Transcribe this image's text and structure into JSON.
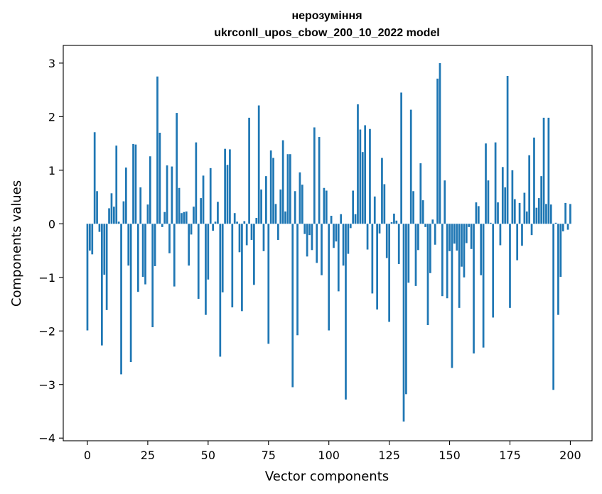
{
  "chart_data": {
    "type": "bar",
    "title_line1": "нерозуміння",
    "title_line2": "ukrconll_upos_cbow_200_10_2022 model",
    "xlabel": "Vector components",
    "ylabel": "Components values",
    "xlim": [
      -10,
      209
    ],
    "ylim": [
      -4.05,
      3.33
    ],
    "xticks": [
      0,
      25,
      50,
      75,
      100,
      125,
      150,
      175,
      200
    ],
    "yticks": [
      -4,
      -3,
      -2,
      -1,
      0,
      1,
      2,
      3
    ],
    "ytick_labels": [
      "−4",
      "−3",
      "−2",
      "−1",
      "0",
      "1",
      "2",
      "3"
    ],
    "grid": false,
    "bar_color": "#1f77b4",
    "values": [
      -1.99,
      -0.5,
      -0.57,
      1.71,
      0.61,
      -0.15,
      -2.27,
      -0.95,
      -1.61,
      0.29,
      0.57,
      0.32,
      1.46,
      0.04,
      -2.81,
      0.42,
      1.05,
      -0.78,
      -2.58,
      1.49,
      1.48,
      -1.27,
      0.68,
      -0.99,
      -1.13,
      0.36,
      1.26,
      -1.93,
      -0.79,
      2.75,
      1.7,
      -0.06,
      0.22,
      1.09,
      -0.55,
      1.07,
      -1.17,
      2.07,
      0.67,
      0.2,
      0.22,
      0.23,
      -0.78,
      -0.2,
      0.32,
      1.52,
      -1.4,
      0.48,
      0.9,
      -1.7,
      -1.04,
      1.04,
      -0.13,
      0.04,
      0.41,
      -2.48,
      -1.28,
      1.4,
      1.1,
      1.39,
      -1.56,
      0.2,
      0.04,
      -0.53,
      -1.63,
      0.05,
      -0.4,
      1.98,
      -0.3,
      -1.14,
      0.11,
      2.21,
      0.64,
      -0.51,
      0.89,
      -2.24,
      1.37,
      1.23,
      0.37,
      -0.3,
      0.64,
      1.56,
      0.23,
      1.3,
      1.3,
      -3.05,
      0.61,
      -2.08,
      0.96,
      0.73,
      -0.19,
      -0.61,
      -0.21,
      -0.49,
      1.8,
      -0.73,
      1.62,
      -0.96,
      0.67,
      0.62,
      -1.99,
      0.15,
      -0.45,
      -0.33,
      -1.26,
      0.18,
      -0.78,
      -3.28,
      -0.56,
      -0.08,
      0.62,
      0.18,
      2.23,
      1.76,
      1.34,
      1.84,
      -0.48,
      1.77,
      -1.3,
      0.51,
      -1.6,
      -0.18,
      1.23,
      0.74,
      -0.64,
      -1.83,
      0.03,
      0.19,
      0.06,
      -0.75,
      2.45,
      -3.69,
      -3.18,
      -1.1,
      2.13,
      0.61,
      -1.16,
      -0.49,
      1.13,
      0.44,
      -0.06,
      -1.89,
      -0.92,
      0.08,
      -0.39,
      2.71,
      3.0,
      -1.35,
      0.81,
      -1.39,
      -0.51,
      -2.69,
      -0.37,
      -0.5,
      -1.57,
      -0.8,
      -1.0,
      -0.36,
      -0.06,
      -0.47,
      -2.42,
      0.4,
      0.33,
      -0.96,
      -2.31,
      1.5,
      0.81,
      0.02,
      -1.75,
      1.52,
      0.4,
      -0.4,
      1.06,
      0.68,
      2.76,
      -1.57,
      1.0,
      0.46,
      -0.68,
      0.39,
      -0.41,
      0.58,
      0.23,
      1.28,
      -0.21,
      1.61,
      0.3,
      0.48,
      0.89,
      1.98,
      0.37,
      1.98,
      0.36,
      -3.1,
      0.02,
      -1.7,
      -0.99,
      -0.14,
      0.39,
      -0.11,
      0.37
    ]
  }
}
